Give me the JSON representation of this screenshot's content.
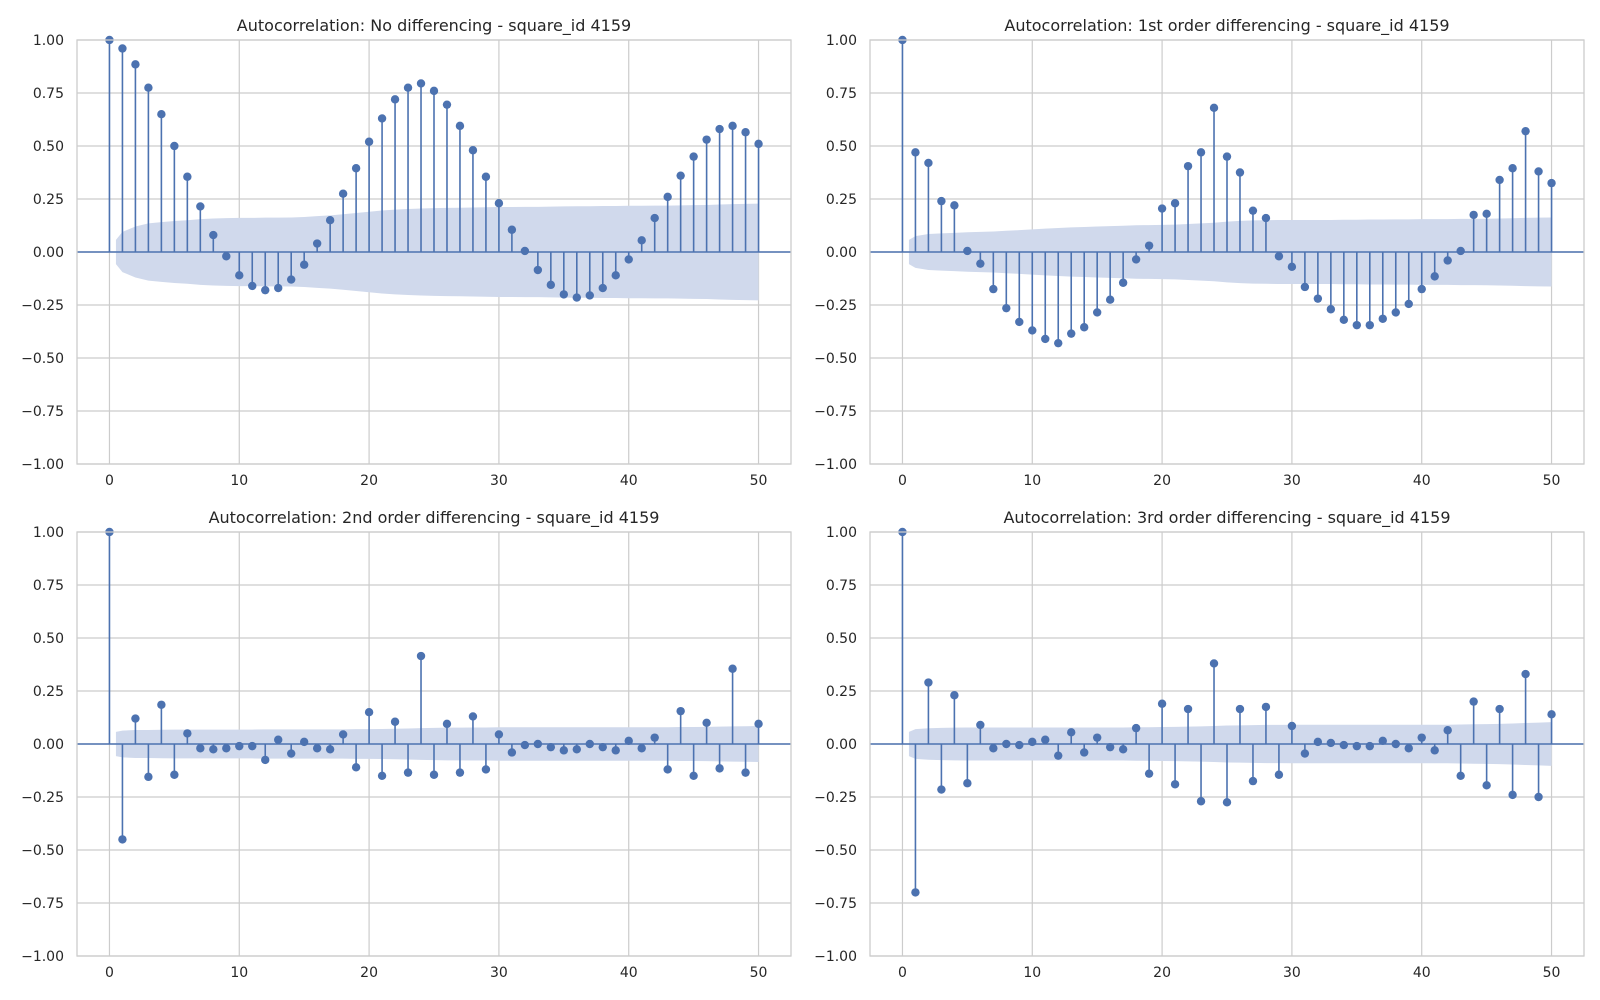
{
  "figure": {
    "stem_color": "#4c72b0",
    "band_color": "#d0d9ec",
    "grid_color": "#cccccc",
    "spine_color": "#cccccc"
  },
  "chart_data": [
    {
      "type": "stem",
      "title": "Autocorrelation: No differencing - square_id 4159",
      "xlabel": "",
      "ylabel": "",
      "xlim": [
        -2.5,
        52.5
      ],
      "ylim": [
        -1.0,
        1.0
      ],
      "grid": true,
      "x_ticks": [
        "0",
        "10",
        "20",
        "30",
        "40",
        "50"
      ],
      "y_ticks": [
        "1.00",
        "0.75",
        "0.50",
        "0.25",
        "0.00",
        "−0.25",
        "−0.50",
        "−0.75",
        "−1.00"
      ],
      "lags": [
        0,
        1,
        2,
        3,
        4,
        5,
        6,
        7,
        8,
        9,
        10,
        11,
        12,
        13,
        14,
        15,
        16,
        17,
        18,
        19,
        20,
        21,
        22,
        23,
        24,
        25,
        26,
        27,
        28,
        29,
        30,
        31,
        32,
        33,
        34,
        35,
        36,
        37,
        38,
        39,
        40,
        41,
        42,
        43,
        44,
        45,
        46,
        47,
        48,
        49,
        50
      ],
      "values": [
        1.0,
        0.96,
        0.885,
        0.775,
        0.65,
        0.5,
        0.355,
        0.215,
        0.08,
        -0.02,
        -0.11,
        -0.16,
        -0.18,
        -0.17,
        -0.13,
        -0.06,
        0.04,
        0.15,
        0.275,
        0.395,
        0.52,
        0.63,
        0.72,
        0.775,
        0.795,
        0.76,
        0.695,
        0.595,
        0.48,
        0.355,
        0.23,
        0.105,
        0.005,
        -0.085,
        -0.155,
        -0.2,
        -0.215,
        -0.205,
        -0.17,
        -0.11,
        -0.035,
        0.055,
        0.16,
        0.26,
        0.36,
        0.45,
        0.53,
        0.58,
        0.595,
        0.565,
        0.51
      ],
      "conf_band": [
        0.057,
        0.095,
        0.12,
        0.135,
        0.141,
        0.146,
        0.15,
        0.155,
        0.158,
        0.16,
        0.161,
        0.161,
        0.162,
        0.162,
        0.163,
        0.165,
        0.169,
        0.173,
        0.178,
        0.184,
        0.19,
        0.196,
        0.2,
        0.203,
        0.205,
        0.207,
        0.208,
        0.209,
        0.21,
        0.211,
        0.212,
        0.212,
        0.213,
        0.213,
        0.214,
        0.215,
        0.216,
        0.216,
        0.217,
        0.217,
        0.218,
        0.218,
        0.219,
        0.219,
        0.22,
        0.221,
        0.222,
        0.224,
        0.226,
        0.227,
        0.228
      ]
    },
    {
      "type": "stem",
      "title": "Autocorrelation: 1st order differencing - square_id 4159",
      "xlabel": "",
      "ylabel": "",
      "xlim": [
        -2.5,
        52.5
      ],
      "ylim": [
        -1.0,
        1.0
      ],
      "grid": true,
      "x_ticks": [
        "0",
        "10",
        "20",
        "30",
        "40",
        "50"
      ],
      "y_ticks": [
        "1.00",
        "0.75",
        "0.50",
        "0.25",
        "0.00",
        "−0.25",
        "−0.50",
        "−0.75",
        "−1.00"
      ],
      "lags": [
        0,
        1,
        2,
        3,
        4,
        5,
        6,
        7,
        8,
        9,
        10,
        11,
        12,
        13,
        14,
        15,
        16,
        17,
        18,
        19,
        20,
        21,
        22,
        23,
        24,
        25,
        26,
        27,
        28,
        29,
        30,
        31,
        32,
        33,
        34,
        35,
        36,
        37,
        38,
        39,
        40,
        41,
        42,
        43,
        44,
        45,
        46,
        47,
        48,
        49,
        50
      ],
      "values": [
        1.0,
        0.47,
        0.42,
        0.24,
        0.22,
        0.005,
        -0.055,
        -0.175,
        -0.265,
        -0.33,
        -0.37,
        -0.41,
        -0.43,
        -0.385,
        -0.355,
        -0.285,
        -0.225,
        -0.145,
        -0.035,
        0.03,
        0.205,
        0.23,
        0.405,
        0.47,
        0.68,
        0.45,
        0.375,
        0.195,
        0.16,
        -0.02,
        -0.07,
        -0.165,
        -0.22,
        -0.27,
        -0.32,
        -0.345,
        -0.345,
        -0.315,
        -0.285,
        -0.245,
        -0.175,
        -0.115,
        -0.04,
        0.005,
        0.175,
        0.18,
        0.34,
        0.395,
        0.57,
        0.38,
        0.325
      ],
      "conf_band": [
        0.057,
        0.075,
        0.085,
        0.088,
        0.09,
        0.093,
        0.095,
        0.097,
        0.1,
        0.103,
        0.107,
        0.11,
        0.113,
        0.116,
        0.118,
        0.12,
        0.122,
        0.124,
        0.126,
        0.127,
        0.128,
        0.129,
        0.132,
        0.135,
        0.138,
        0.143,
        0.147,
        0.149,
        0.15,
        0.151,
        0.151,
        0.151,
        0.151,
        0.151,
        0.152,
        0.152,
        0.153,
        0.153,
        0.154,
        0.154,
        0.155,
        0.155,
        0.155,
        0.156,
        0.156,
        0.157,
        0.158,
        0.159,
        0.161,
        0.162,
        0.163
      ]
    },
    {
      "type": "stem",
      "title": "Autocorrelation: 2nd order differencing - square_id 4159",
      "xlabel": "",
      "ylabel": "",
      "xlim": [
        -2.5,
        52.5
      ],
      "ylim": [
        -1.0,
        1.0
      ],
      "grid": true,
      "x_ticks": [
        "0",
        "10",
        "20",
        "30",
        "40",
        "50"
      ],
      "y_ticks": [
        "1.00",
        "0.75",
        "0.50",
        "0.25",
        "0.00",
        "−0.25",
        "−0.50",
        "−0.75",
        "−1.00"
      ],
      "lags": [
        0,
        1,
        2,
        3,
        4,
        5,
        6,
        7,
        8,
        9,
        10,
        11,
        12,
        13,
        14,
        15,
        16,
        17,
        18,
        19,
        20,
        21,
        22,
        23,
        24,
        25,
        26,
        27,
        28,
        29,
        30,
        31,
        32,
        33,
        34,
        35,
        36,
        37,
        38,
        39,
        40,
        41,
        42,
        43,
        44,
        45,
        46,
        47,
        48,
        49,
        50
      ],
      "values": [
        1.0,
        -0.45,
        0.12,
        -0.155,
        0.185,
        -0.145,
        0.05,
        -0.02,
        -0.025,
        -0.02,
        -0.01,
        -0.01,
        -0.075,
        0.02,
        -0.045,
        0.01,
        -0.02,
        -0.025,
        0.045,
        -0.11,
        0.15,
        -0.15,
        0.105,
        -0.135,
        0.415,
        -0.145,
        0.095,
        -0.135,
        0.13,
        -0.12,
        0.045,
        -0.04,
        -0.005,
        0.0,
        -0.015,
        -0.03,
        -0.025,
        0.0,
        -0.015,
        -0.03,
        0.015,
        -0.02,
        0.03,
        -0.12,
        0.155,
        -0.15,
        0.1,
        -0.115,
        0.355,
        -0.135,
        0.095
      ],
      "conf_band": [
        0.057,
        0.063,
        0.066,
        0.066,
        0.067,
        0.068,
        0.068,
        0.068,
        0.068,
        0.068,
        0.068,
        0.068,
        0.069,
        0.069,
        0.069,
        0.069,
        0.069,
        0.069,
        0.069,
        0.07,
        0.07,
        0.071,
        0.072,
        0.073,
        0.075,
        0.076,
        0.077,
        0.077,
        0.078,
        0.078,
        0.079,
        0.079,
        0.079,
        0.079,
        0.079,
        0.079,
        0.079,
        0.079,
        0.079,
        0.079,
        0.079,
        0.079,
        0.079,
        0.079,
        0.08,
        0.08,
        0.081,
        0.082,
        0.083,
        0.084,
        0.085
      ]
    },
    {
      "type": "stem",
      "title": "Autocorrelation: 3rd order differencing - square_id 4159",
      "xlabel": "",
      "ylabel": "",
      "xlim": [
        -2.5,
        52.5
      ],
      "ylim": [
        -1.0,
        1.0
      ],
      "grid": true,
      "x_ticks": [
        "0",
        "10",
        "20",
        "30",
        "40",
        "50"
      ],
      "y_ticks": [
        "1.00",
        "0.75",
        "0.50",
        "0.25",
        "0.00",
        "−0.25",
        "−0.50",
        "−0.75",
        "−1.00"
      ],
      "lags": [
        0,
        1,
        2,
        3,
        4,
        5,
        6,
        7,
        8,
        9,
        10,
        11,
        12,
        13,
        14,
        15,
        16,
        17,
        18,
        19,
        20,
        21,
        22,
        23,
        24,
        25,
        26,
        27,
        28,
        29,
        30,
        31,
        32,
        33,
        34,
        35,
        36,
        37,
        38,
        39,
        40,
        41,
        42,
        43,
        44,
        45,
        46,
        47,
        48,
        49,
        50
      ],
      "values": [
        1.0,
        -0.7,
        0.29,
        -0.215,
        0.23,
        -0.185,
        0.09,
        -0.02,
        0.0,
        -0.005,
        0.01,
        0.02,
        -0.055,
        0.055,
        -0.04,
        0.03,
        -0.015,
        -0.025,
        0.075,
        -0.14,
        0.19,
        -0.19,
        0.165,
        -0.27,
        0.38,
        -0.275,
        0.165,
        -0.175,
        0.175,
        -0.145,
        0.085,
        -0.045,
        0.01,
        0.005,
        -0.005,
        -0.01,
        -0.01,
        0.015,
        0.0,
        -0.02,
        0.03,
        -0.03,
        0.065,
        -0.15,
        0.2,
        -0.195,
        0.165,
        -0.24,
        0.33,
        -0.25,
        0.14
      ],
      "conf_band": [
        0.057,
        0.07,
        0.074,
        0.076,
        0.077,
        0.078,
        0.078,
        0.078,
        0.078,
        0.078,
        0.078,
        0.078,
        0.078,
        0.078,
        0.078,
        0.078,
        0.078,
        0.078,
        0.079,
        0.079,
        0.08,
        0.081,
        0.082,
        0.083,
        0.085,
        0.087,
        0.088,
        0.089,
        0.09,
        0.09,
        0.091,
        0.091,
        0.091,
        0.091,
        0.091,
        0.091,
        0.091,
        0.091,
        0.091,
        0.091,
        0.091,
        0.091,
        0.091,
        0.092,
        0.093,
        0.094,
        0.095,
        0.097,
        0.099,
        0.101,
        0.103
      ]
    }
  ]
}
